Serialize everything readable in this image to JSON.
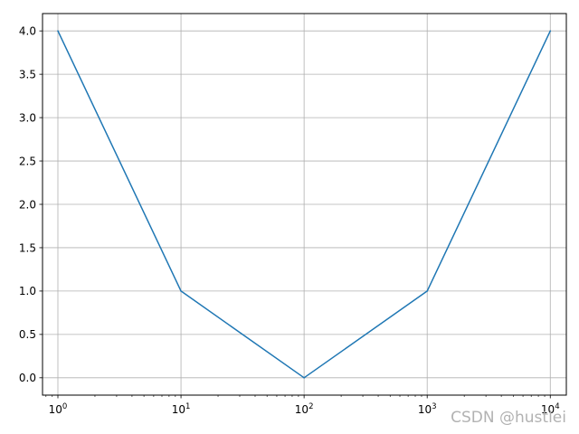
{
  "chart_data": {
    "type": "line",
    "title": "",
    "xlabel": "",
    "ylabel": "",
    "x": [
      1,
      10,
      100,
      1000,
      10000
    ],
    "series": [
      {
        "values": [
          4,
          1,
          0,
          1,
          4
        ],
        "color": "#1f77b4"
      }
    ],
    "xscale": "log",
    "xlim": [
      0.75,
      13500
    ],
    "ylim": [
      -0.2,
      4.2
    ],
    "x_ticks": [
      {
        "value": 1,
        "base": "10",
        "exp": "0"
      },
      {
        "value": 10,
        "base": "10",
        "exp": "1"
      },
      {
        "value": 100,
        "base": "10",
        "exp": "2"
      },
      {
        "value": 1000,
        "base": "10",
        "exp": "3"
      },
      {
        "value": 10000,
        "base": "10",
        "exp": "4"
      }
    ],
    "y_ticks": [
      {
        "value": 0,
        "label": "0.0"
      },
      {
        "value": 0.5,
        "label": "0.5"
      },
      {
        "value": 1,
        "label": "1.0"
      },
      {
        "value": 1.5,
        "label": "1.5"
      },
      {
        "value": 2,
        "label": "2.0"
      },
      {
        "value": 2.5,
        "label": "2.5"
      },
      {
        "value": 3,
        "label": "3.0"
      },
      {
        "value": 3.5,
        "label": "3.5"
      },
      {
        "value": 4,
        "label": "4.0"
      }
    ],
    "grid": true,
    "grid_color": "#b0b0b0",
    "axis_color": "#000000"
  },
  "watermark": "CSDN @hustlei"
}
